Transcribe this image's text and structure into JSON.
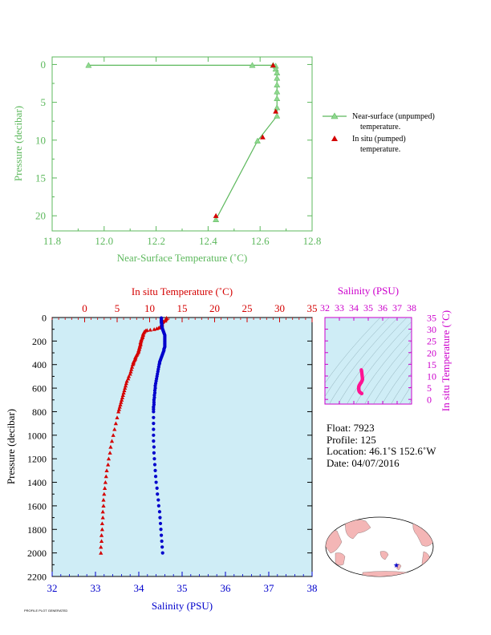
{
  "colors": {
    "green": "#5cb85c",
    "red": "#d40000",
    "blue": "#0000cc",
    "magenta": "#cc00cc",
    "panel_bg": "#cfedf6",
    "land": "#f4b6b6",
    "ocean": "#ffffff"
  },
  "chart_data": [
    {
      "type": "line",
      "id": "top",
      "xlabel": "Near-Surface Temperature (˚C)",
      "ylabel": "Pressure (decibar)",
      "xlim": [
        11.8,
        12.8
      ],
      "ylim": [
        22,
        -1
      ],
      "x_ticks": [
        "11.8",
        "12.0",
        "12.2",
        "12.4",
        "12.6",
        "12.8"
      ],
      "y_ticks": [
        "0",
        "5",
        "10",
        "15",
        "20"
      ],
      "legend": [
        "Near-surface (unpumped) temperature.",
        "In situ (pumped) temperature."
      ],
      "legend_position": "right",
      "series": [
        {
          "name": "Near-surface (unpumped) temperature.",
          "marker": "triangle",
          "points": [
            [
              11.94,
              0.1
            ],
            [
              12.57,
              0.1
            ],
            [
              12.65,
              0.1
            ],
            [
              12.66,
              0.2
            ],
            [
              12.66,
              0.6
            ],
            [
              12.665,
              1.1
            ],
            [
              12.665,
              1.8
            ],
            [
              12.665,
              2.7
            ],
            [
              12.665,
              3.6
            ],
            [
              12.665,
              4.5
            ],
            [
              12.665,
              5.7
            ],
            [
              12.665,
              6.8
            ],
            [
              12.59,
              10.1
            ],
            [
              12.43,
              20.5
            ]
          ]
        },
        {
          "name": "In situ (pumped) temperature.",
          "marker": "triangle",
          "points": [
            [
              12.65,
              0.1
            ],
            [
              12.66,
              6.2
            ],
            [
              12.61,
              9.6
            ],
            [
              12.43,
              20.0
            ]
          ]
        }
      ]
    },
    {
      "type": "line",
      "id": "main",
      "xlabel_top": "In situ Temperature (˚C)",
      "xlabel_bottom": "Salinity (PSU)",
      "ylabel": "Pressure (decibar)",
      "temp_lim": [
        -5,
        35
      ],
      "sal_lim": [
        32,
        38
      ],
      "ylim": [
        2200,
        0
      ],
      "temp_ticks": [
        "0",
        "5",
        "10",
        "15",
        "20",
        "25",
        "30",
        "35"
      ],
      "sal_ticks": [
        "32",
        "33",
        "34",
        "35",
        "36",
        "37",
        "38"
      ],
      "y_ticks": [
        "0",
        "200",
        "400",
        "600",
        "800",
        "1000",
        "1200",
        "1400",
        "1600",
        "1800",
        "2000",
        "2200"
      ],
      "series": [
        {
          "name": "In situ Temperature (˚C)",
          "marker": "triangle",
          "points": [
            [
              12.6,
              4
            ],
            [
              12.6,
              10
            ],
            [
              12.5,
              16
            ],
            [
              12.4,
              22
            ],
            [
              12.4,
              28
            ],
            [
              12.1,
              34
            ],
            [
              12.0,
              40
            ],
            [
              11.9,
              46
            ],
            [
              11.9,
              52
            ],
            [
              11.9,
              58
            ],
            [
              11.9,
              64
            ],
            [
              11.8,
              70
            ],
            [
              11.7,
              76
            ],
            [
              11.6,
              82
            ],
            [
              11.4,
              88
            ],
            [
              11.1,
              94
            ],
            [
              10.7,
              100
            ],
            [
              10.1,
              105
            ],
            [
              9.6,
              108
            ],
            [
              9.4,
              112
            ],
            [
              9.2,
              120
            ],
            [
              9.1,
              130
            ],
            [
              9.0,
              140
            ],
            [
              9.0,
              150
            ],
            [
              8.9,
              160
            ],
            [
              8.9,
              170
            ],
            [
              8.8,
              180
            ],
            [
              8.7,
              190
            ],
            [
              8.7,
              200
            ],
            [
              8.6,
              210
            ],
            [
              8.6,
              220
            ],
            [
              8.6,
              230
            ],
            [
              8.5,
              240
            ],
            [
              8.5,
              250
            ],
            [
              8.4,
              260
            ],
            [
              8.4,
              270
            ],
            [
              8.3,
              280
            ],
            [
              8.3,
              290
            ],
            [
              8.2,
              300
            ],
            [
              8.1,
              310
            ],
            [
              8.0,
              320
            ],
            [
              7.9,
              330
            ],
            [
              7.8,
              340
            ],
            [
              7.8,
              350
            ],
            [
              7.7,
              360
            ],
            [
              7.6,
              370
            ],
            [
              7.5,
              380
            ],
            [
              7.5,
              390
            ],
            [
              7.4,
              400
            ],
            [
              7.3,
              420
            ],
            [
              7.2,
              440
            ],
            [
              7.1,
              460
            ],
            [
              7.0,
              480
            ],
            [
              6.8,
              500
            ],
            [
              6.7,
              520
            ],
            [
              6.5,
              540
            ],
            [
              6.4,
              560
            ],
            [
              6.3,
              580
            ],
            [
              6.2,
              600
            ],
            [
              6.1,
              620
            ],
            [
              6.0,
              640
            ],
            [
              5.9,
              660
            ],
            [
              5.8,
              680
            ],
            [
              5.7,
              700
            ],
            [
              5.6,
              720
            ],
            [
              5.5,
              740
            ],
            [
              5.4,
              760
            ],
            [
              5.3,
              780
            ],
            [
              5.2,
              800
            ],
            [
              5.0,
              850
            ],
            [
              4.8,
              900
            ],
            [
              4.6,
              950
            ],
            [
              4.4,
              1000
            ],
            [
              4.2,
              1050
            ],
            [
              4.0,
              1100
            ],
            [
              3.9,
              1150
            ],
            [
              3.7,
              1200
            ],
            [
              3.6,
              1250
            ],
            [
              3.4,
              1300
            ],
            [
              3.3,
              1350
            ],
            [
              3.2,
              1400
            ],
            [
              3.1,
              1450
            ],
            [
              3.0,
              1500
            ],
            [
              2.9,
              1550
            ],
            [
              2.9,
              1600
            ],
            [
              2.8,
              1650
            ],
            [
              2.8,
              1700
            ],
            [
              2.7,
              1750
            ],
            [
              2.7,
              1800
            ],
            [
              2.6,
              1850
            ],
            [
              2.6,
              1900
            ],
            [
              2.5,
              1950
            ],
            [
              2.5,
              2000
            ]
          ]
        },
        {
          "name": "Salinity (PSU)",
          "marker": "dot",
          "points": [
            [
              34.52,
              4
            ],
            [
              34.52,
              12
            ],
            [
              34.52,
              20
            ],
            [
              34.52,
              28
            ],
            [
              34.52,
              36
            ],
            [
              34.52,
              44
            ],
            [
              34.53,
              52
            ],
            [
              34.53,
              60
            ],
            [
              34.53,
              68
            ],
            [
              34.53,
              76
            ],
            [
              34.54,
              84
            ],
            [
              34.54,
              92
            ],
            [
              34.55,
              100
            ],
            [
              34.56,
              110
            ],
            [
              34.57,
              120
            ],
            [
              34.58,
              130
            ],
            [
              34.59,
              140
            ],
            [
              34.6,
              150
            ],
            [
              34.6,
              160
            ],
            [
              34.6,
              170
            ],
            [
              34.6,
              180
            ],
            [
              34.6,
              190
            ],
            [
              34.6,
              200
            ],
            [
              34.6,
              210
            ],
            [
              34.6,
              220
            ],
            [
              34.6,
              230
            ],
            [
              34.6,
              240
            ],
            [
              34.6,
              250
            ],
            [
              34.59,
              260
            ],
            [
              34.58,
              270
            ],
            [
              34.58,
              280
            ],
            [
              34.57,
              290
            ],
            [
              34.56,
              300
            ],
            [
              34.55,
              310
            ],
            [
              34.54,
              320
            ],
            [
              34.53,
              330
            ],
            [
              34.52,
              340
            ],
            [
              34.51,
              350
            ],
            [
              34.5,
              360
            ],
            [
              34.49,
              370
            ],
            [
              34.48,
              380
            ],
            [
              34.48,
              390
            ],
            [
              34.47,
              400
            ],
            [
              34.46,
              420
            ],
            [
              34.45,
              440
            ],
            [
              34.44,
              460
            ],
            [
              34.43,
              480
            ],
            [
              34.42,
              500
            ],
            [
              34.41,
              520
            ],
            [
              34.4,
              540
            ],
            [
              34.39,
              560
            ],
            [
              34.38,
              580
            ],
            [
              34.38,
              600
            ],
            [
              34.37,
              620
            ],
            [
              34.37,
              640
            ],
            [
              34.36,
              660
            ],
            [
              34.36,
              680
            ],
            [
              34.35,
              700
            ],
            [
              34.35,
              720
            ],
            [
              34.35,
              740
            ],
            [
              34.34,
              760
            ],
            [
              34.34,
              780
            ],
            [
              34.34,
              800
            ],
            [
              34.34,
              850
            ],
            [
              34.34,
              900
            ],
            [
              34.34,
              950
            ],
            [
              34.34,
              1000
            ],
            [
              34.34,
              1050
            ],
            [
              34.35,
              1100
            ],
            [
              34.35,
              1150
            ],
            [
              34.36,
              1200
            ],
            [
              34.37,
              1250
            ],
            [
              34.38,
              1300
            ],
            [
              34.39,
              1350
            ],
            [
              34.4,
              1400
            ],
            [
              34.42,
              1450
            ],
            [
              34.43,
              1500
            ],
            [
              34.45,
              1550
            ],
            [
              34.46,
              1600
            ],
            [
              34.48,
              1650
            ],
            [
              34.49,
              1700
            ],
            [
              34.5,
              1750
            ],
            [
              34.51,
              1800
            ],
            [
              34.52,
              1850
            ],
            [
              34.53,
              1900
            ],
            [
              34.54,
              1950
            ],
            [
              34.55,
              2000
            ]
          ]
        }
      ]
    },
    {
      "type": "scatter",
      "id": "ts",
      "xlabel": "Salinity (PSU)",
      "ylabel": "In situ Temperature (˚C)",
      "xlim": [
        32,
        38
      ],
      "ylim": [
        -2,
        35
      ],
      "x_ticks": [
        "32",
        "33",
        "34",
        "35",
        "36",
        "37",
        "38"
      ],
      "y_ticks": [
        "0",
        "5",
        "10",
        "15",
        "20",
        "25",
        "30",
        "35"
      ],
      "points": [
        [
          34.52,
          12.6
        ],
        [
          34.53,
          12.3
        ],
        [
          34.54,
          12.0
        ],
        [
          34.55,
          11.5
        ],
        [
          34.56,
          11.0
        ],
        [
          34.57,
          10.5
        ],
        [
          34.58,
          10.0
        ],
        [
          34.59,
          9.5
        ],
        [
          34.6,
          9.0
        ],
        [
          34.6,
          8.6
        ],
        [
          34.59,
          8.3
        ],
        [
          34.57,
          8.0
        ],
        [
          34.55,
          7.7
        ],
        [
          34.53,
          7.5
        ],
        [
          34.51,
          7.2
        ],
        [
          34.48,
          7.0
        ],
        [
          34.45,
          6.8
        ],
        [
          34.43,
          6.5
        ],
        [
          34.41,
          6.3
        ],
        [
          34.39,
          6.1
        ],
        [
          34.37,
          5.9
        ],
        [
          34.36,
          5.7
        ],
        [
          34.35,
          5.5
        ],
        [
          34.34,
          5.2
        ],
        [
          34.34,
          5.0
        ],
        [
          34.34,
          4.6
        ],
        [
          34.34,
          4.4
        ],
        [
          34.35,
          4.2
        ],
        [
          34.35,
          4.0
        ],
        [
          34.36,
          3.7
        ],
        [
          34.38,
          3.4
        ],
        [
          34.4,
          3.2
        ],
        [
          34.43,
          3.0
        ],
        [
          34.46,
          2.9
        ],
        [
          34.49,
          2.7
        ],
        [
          34.52,
          2.6
        ],
        [
          34.55,
          2.5
        ]
      ]
    }
  ],
  "info": {
    "float": "Float:  7923",
    "profile": "Profile:  125",
    "location": "Location:  46.1˚S  152.6˚W",
    "date": "Date:  04/07/2016"
  },
  "map": {
    "marker_icon": "star-icon"
  },
  "footer": {
    "text": "PROFILE PLOT  GENERATED"
  }
}
